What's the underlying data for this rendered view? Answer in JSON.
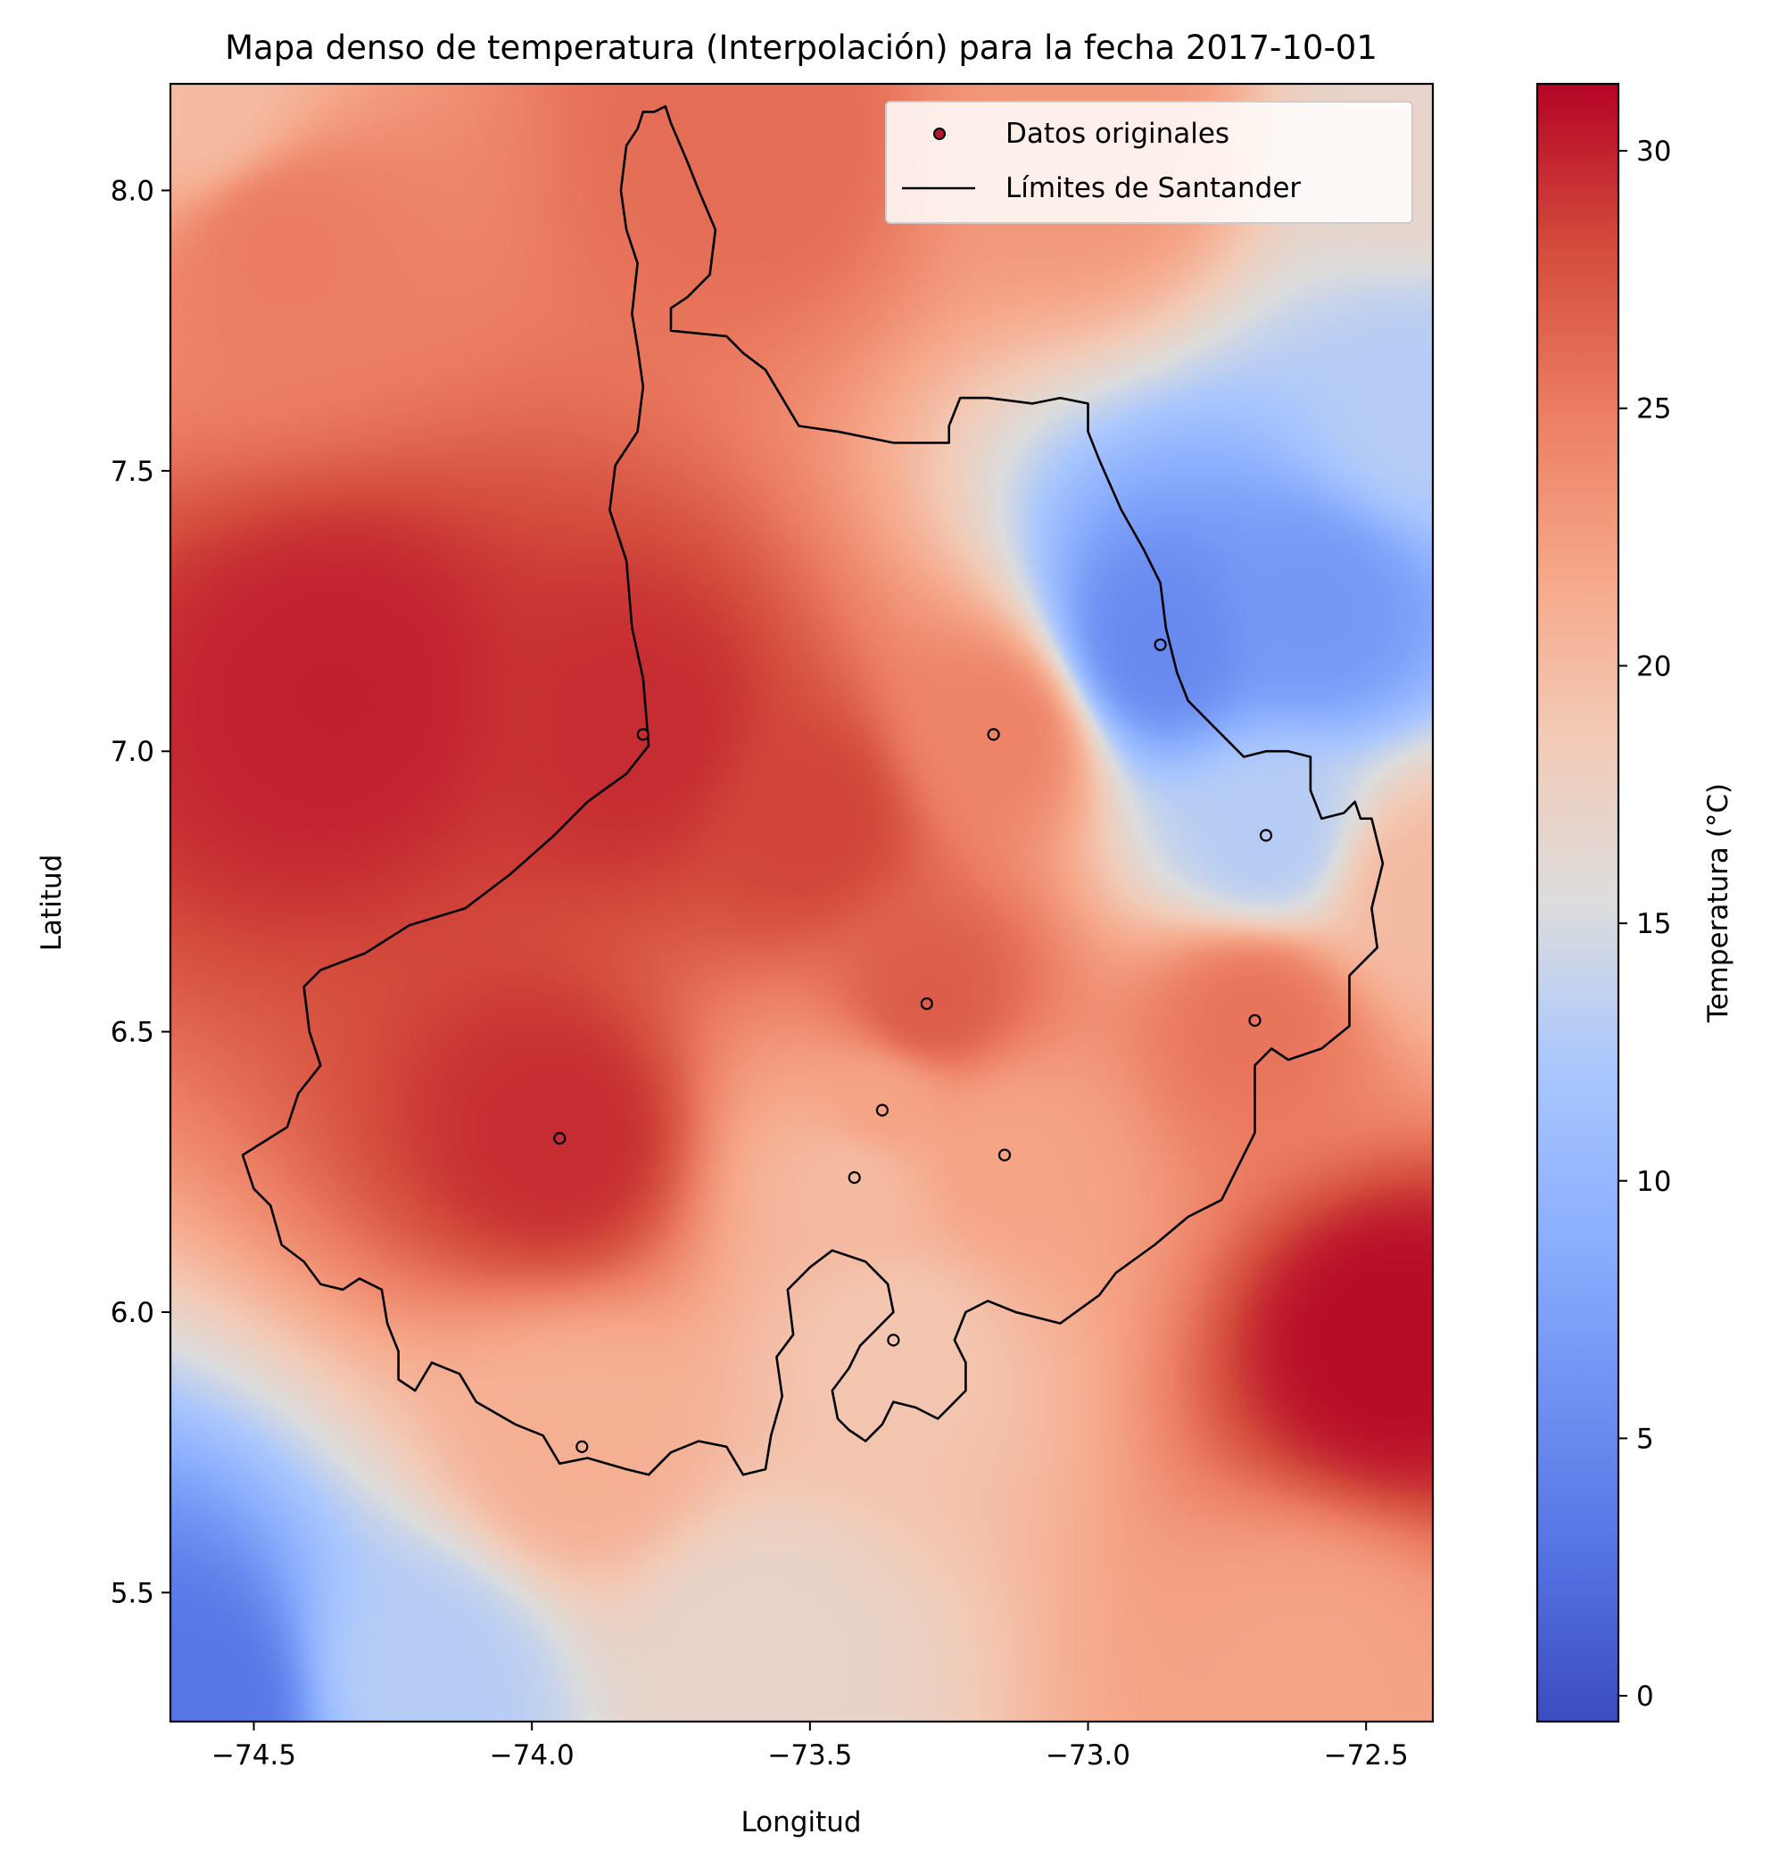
{
  "chart_data": {
    "type": "heatmap",
    "title": "Mapa denso de temperatura (Interpolación) para la fecha 2017-10-01",
    "xlabel": "Longitud",
    "ylabel": "Latitud",
    "xlim": [
      -74.65,
      -72.38
    ],
    "ylim": [
      5.27,
      8.19
    ],
    "x_ticks": [
      -74.5,
      -74.0,
      -73.5,
      -73.0,
      -72.5
    ],
    "x_tick_labels": [
      "−74.5",
      "−74.0",
      "−73.5",
      "−73.0",
      "−72.5"
    ],
    "y_ticks": [
      5.5,
      6.0,
      6.5,
      7.0,
      7.5,
      8.0
    ],
    "y_tick_labels": [
      "5.5",
      "6.0",
      "6.5",
      "7.0",
      "7.5",
      "8.0"
    ],
    "colormap": "coolwarm",
    "colorbar": {
      "label": "Temperatura (°C)",
      "range": [
        -0.5,
        31.3
      ],
      "ticks": [
        0,
        5,
        10,
        15,
        20,
        25,
        30
      ],
      "tick_labels": [
        "0",
        "5",
        "10",
        "15",
        "20",
        "25",
        "30"
      ]
    },
    "legend": {
      "placement": "top-right",
      "entries": [
        "Datos originales",
        "Límites de Santander"
      ]
    },
    "stations": [
      {
        "lon": -73.8,
        "lat": 7.03,
        "temp": 29.5
      },
      {
        "lon": -73.17,
        "lat": 7.03,
        "temp": 24.5
      },
      {
        "lon": -72.87,
        "lat": 7.19,
        "temp": 5.0
      },
      {
        "lon": -72.68,
        "lat": 6.85,
        "temp": 13.0
      },
      {
        "lon": -73.29,
        "lat": 6.55,
        "temp": 27.0
      },
      {
        "lon": -72.7,
        "lat": 6.52,
        "temp": 25.5
      },
      {
        "lon": -73.37,
        "lat": 6.36,
        "temp": 22.0
      },
      {
        "lon": -73.95,
        "lat": 6.31,
        "temp": 29.5
      },
      {
        "lon": -73.15,
        "lat": 6.28,
        "temp": 22.0
      },
      {
        "lon": -73.42,
        "lat": 6.24,
        "temp": 20.0
      },
      {
        "lon": -73.35,
        "lat": 5.95,
        "temp": 19.0
      },
      {
        "lon": -73.91,
        "lat": 5.76,
        "temp": 21.0
      }
    ],
    "influence_points": [
      {
        "lon": -74.35,
        "lat": 7.1,
        "temp": 30.0
      },
      {
        "lon": -74.45,
        "lat": 7.9,
        "temp": 25.0
      },
      {
        "lon": -74.6,
        "lat": 8.15,
        "temp": 20.0
      },
      {
        "lon": -73.5,
        "lat": 6.88,
        "temp": 28.5
      },
      {
        "lon": -72.6,
        "lat": 7.25,
        "temp": 6.5
      },
      {
        "lon": -72.4,
        "lat": 7.6,
        "temp": 13.0
      },
      {
        "lon": -72.4,
        "lat": 8.1,
        "temp": 17.0
      },
      {
        "lon": -72.45,
        "lat": 5.95,
        "temp": 31.0
      },
      {
        "lon": -74.6,
        "lat": 5.3,
        "temp": 3.0
      },
      {
        "lon": -74.2,
        "lat": 5.35,
        "temp": 13.0
      },
      {
        "lon": -73.6,
        "lat": 5.4,
        "temp": 17.0
      },
      {
        "lon": -72.6,
        "lat": 5.35,
        "temp": 22.0
      },
      {
        "lon": -73.0,
        "lat": 8.1,
        "temp": 23.0
      },
      {
        "lon": -73.6,
        "lat": 8.1,
        "temp": 26.0
      },
      {
        "lon": -72.4,
        "lat": 6.75,
        "temp": 20.0
      }
    ],
    "boundary": [
      [
        -73.75,
        8.12
      ],
      [
        -73.76,
        8.15
      ],
      [
        -73.78,
        8.14
      ],
      [
        -73.8,
        8.14
      ],
      [
        -73.81,
        8.11
      ],
      [
        -73.83,
        8.08
      ],
      [
        -73.84,
        8.0
      ],
      [
        -73.83,
        7.93
      ],
      [
        -73.81,
        7.87
      ],
      [
        -73.82,
        7.78
      ],
      [
        -73.81,
        7.72
      ],
      [
        -73.8,
        7.65
      ],
      [
        -73.81,
        7.57
      ],
      [
        -73.85,
        7.51
      ],
      [
        -73.86,
        7.43
      ],
      [
        -73.83,
        7.34
      ],
      [
        -73.82,
        7.22
      ],
      [
        -73.8,
        7.13
      ],
      [
        -73.79,
        7.01
      ],
      [
        -73.83,
        6.96
      ],
      [
        -73.9,
        6.91
      ],
      [
        -73.96,
        6.85
      ],
      [
        -74.04,
        6.78
      ],
      [
        -74.12,
        6.72
      ],
      [
        -74.22,
        6.69
      ],
      [
        -74.3,
        6.64
      ],
      [
        -74.38,
        6.61
      ],
      [
        -74.41,
        6.58
      ],
      [
        -74.4,
        6.5
      ],
      [
        -74.38,
        6.44
      ],
      [
        -74.42,
        6.39
      ],
      [
        -74.44,
        6.33
      ],
      [
        -74.52,
        6.28
      ],
      [
        -74.5,
        6.22
      ],
      [
        -74.47,
        6.19
      ],
      [
        -74.45,
        6.12
      ],
      [
        -74.41,
        6.09
      ],
      [
        -74.38,
        6.05
      ],
      [
        -74.34,
        6.04
      ],
      [
        -74.31,
        6.06
      ],
      [
        -74.27,
        6.04
      ],
      [
        -74.26,
        5.98
      ],
      [
        -74.24,
        5.93
      ],
      [
        -74.24,
        5.88
      ],
      [
        -74.21,
        5.86
      ],
      [
        -74.18,
        5.91
      ],
      [
        -74.13,
        5.89
      ],
      [
        -74.1,
        5.84
      ],
      [
        -74.03,
        5.8
      ],
      [
        -73.98,
        5.78
      ],
      [
        -73.95,
        5.73
      ],
      [
        -73.9,
        5.74
      ],
      [
        -73.83,
        5.72
      ],
      [
        -73.79,
        5.71
      ],
      [
        -73.75,
        5.75
      ],
      [
        -73.7,
        5.77
      ],
      [
        -73.65,
        5.76
      ],
      [
        -73.62,
        5.71
      ],
      [
        -73.58,
        5.72
      ],
      [
        -73.57,
        5.78
      ],
      [
        -73.55,
        5.85
      ],
      [
        -73.56,
        5.92
      ],
      [
        -73.53,
        5.96
      ],
      [
        -73.54,
        6.04
      ],
      [
        -73.5,
        6.08
      ],
      [
        -73.46,
        6.11
      ],
      [
        -73.4,
        6.09
      ],
      [
        -73.36,
        6.05
      ],
      [
        -73.35,
        6.0
      ],
      [
        -73.38,
        5.97
      ],
      [
        -73.41,
        5.94
      ],
      [
        -73.43,
        5.9
      ],
      [
        -73.46,
        5.86
      ],
      [
        -73.45,
        5.81
      ],
      [
        -73.43,
        5.79
      ],
      [
        -73.4,
        5.77
      ],
      [
        -73.37,
        5.8
      ],
      [
        -73.35,
        5.84
      ],
      [
        -73.31,
        5.83
      ],
      [
        -73.27,
        5.81
      ],
      [
        -73.25,
        5.83
      ],
      [
        -73.22,
        5.86
      ],
      [
        -73.22,
        5.91
      ],
      [
        -73.24,
        5.95
      ],
      [
        -73.22,
        6.0
      ],
      [
        -73.18,
        6.02
      ],
      [
        -73.13,
        6.0
      ],
      [
        -73.05,
        5.98
      ],
      [
        -72.98,
        6.03
      ],
      [
        -72.95,
        6.07
      ],
      [
        -72.88,
        6.12
      ],
      [
        -72.82,
        6.17
      ],
      [
        -72.76,
        6.2
      ],
      [
        -72.73,
        6.26
      ],
      [
        -72.7,
        6.32
      ],
      [
        -72.7,
        6.44
      ],
      [
        -72.67,
        6.47
      ],
      [
        -72.64,
        6.45
      ],
      [
        -72.58,
        6.47
      ],
      [
        -72.53,
        6.51
      ],
      [
        -72.53,
        6.6
      ],
      [
        -72.48,
        6.65
      ],
      [
        -72.49,
        6.72
      ],
      [
        -72.47,
        6.8
      ],
      [
        -72.49,
        6.88
      ],
      [
        -72.51,
        6.88
      ],
      [
        -72.52,
        6.91
      ],
      [
        -72.54,
        6.89
      ],
      [
        -72.58,
        6.88
      ],
      [
        -72.6,
        6.93
      ],
      [
        -72.6,
        6.99
      ],
      [
        -72.64,
        7.0
      ],
      [
        -72.68,
        7.0
      ],
      [
        -72.72,
        6.99
      ],
      [
        -72.77,
        7.04
      ],
      [
        -72.82,
        7.09
      ],
      [
        -72.84,
        7.14
      ],
      [
        -72.86,
        7.22
      ],
      [
        -72.87,
        7.3
      ],
      [
        -72.9,
        7.36
      ],
      [
        -72.94,
        7.43
      ],
      [
        -72.98,
        7.52
      ],
      [
        -73.0,
        7.57
      ],
      [
        -73.0,
        7.62
      ],
      [
        -73.05,
        7.63
      ],
      [
        -73.1,
        7.62
      ],
      [
        -73.18,
        7.63
      ],
      [
        -73.23,
        7.63
      ],
      [
        -73.25,
        7.58
      ],
      [
        -73.25,
        7.55
      ],
      [
        -73.35,
        7.55
      ],
      [
        -73.4,
        7.56
      ],
      [
        -73.45,
        7.57
      ],
      [
        -73.52,
        7.58
      ],
      [
        -73.55,
        7.63
      ],
      [
        -73.58,
        7.68
      ],
      [
        -73.62,
        7.71
      ],
      [
        -73.65,
        7.74
      ],
      [
        -73.75,
        7.75
      ],
      [
        -73.75,
        7.79
      ],
      [
        -73.72,
        7.81
      ],
      [
        -73.68,
        7.85
      ],
      [
        -73.67,
        7.93
      ],
      [
        -73.7,
        8.0
      ],
      [
        -73.72,
        8.05
      ],
      [
        -73.75,
        8.12
      ]
    ]
  }
}
